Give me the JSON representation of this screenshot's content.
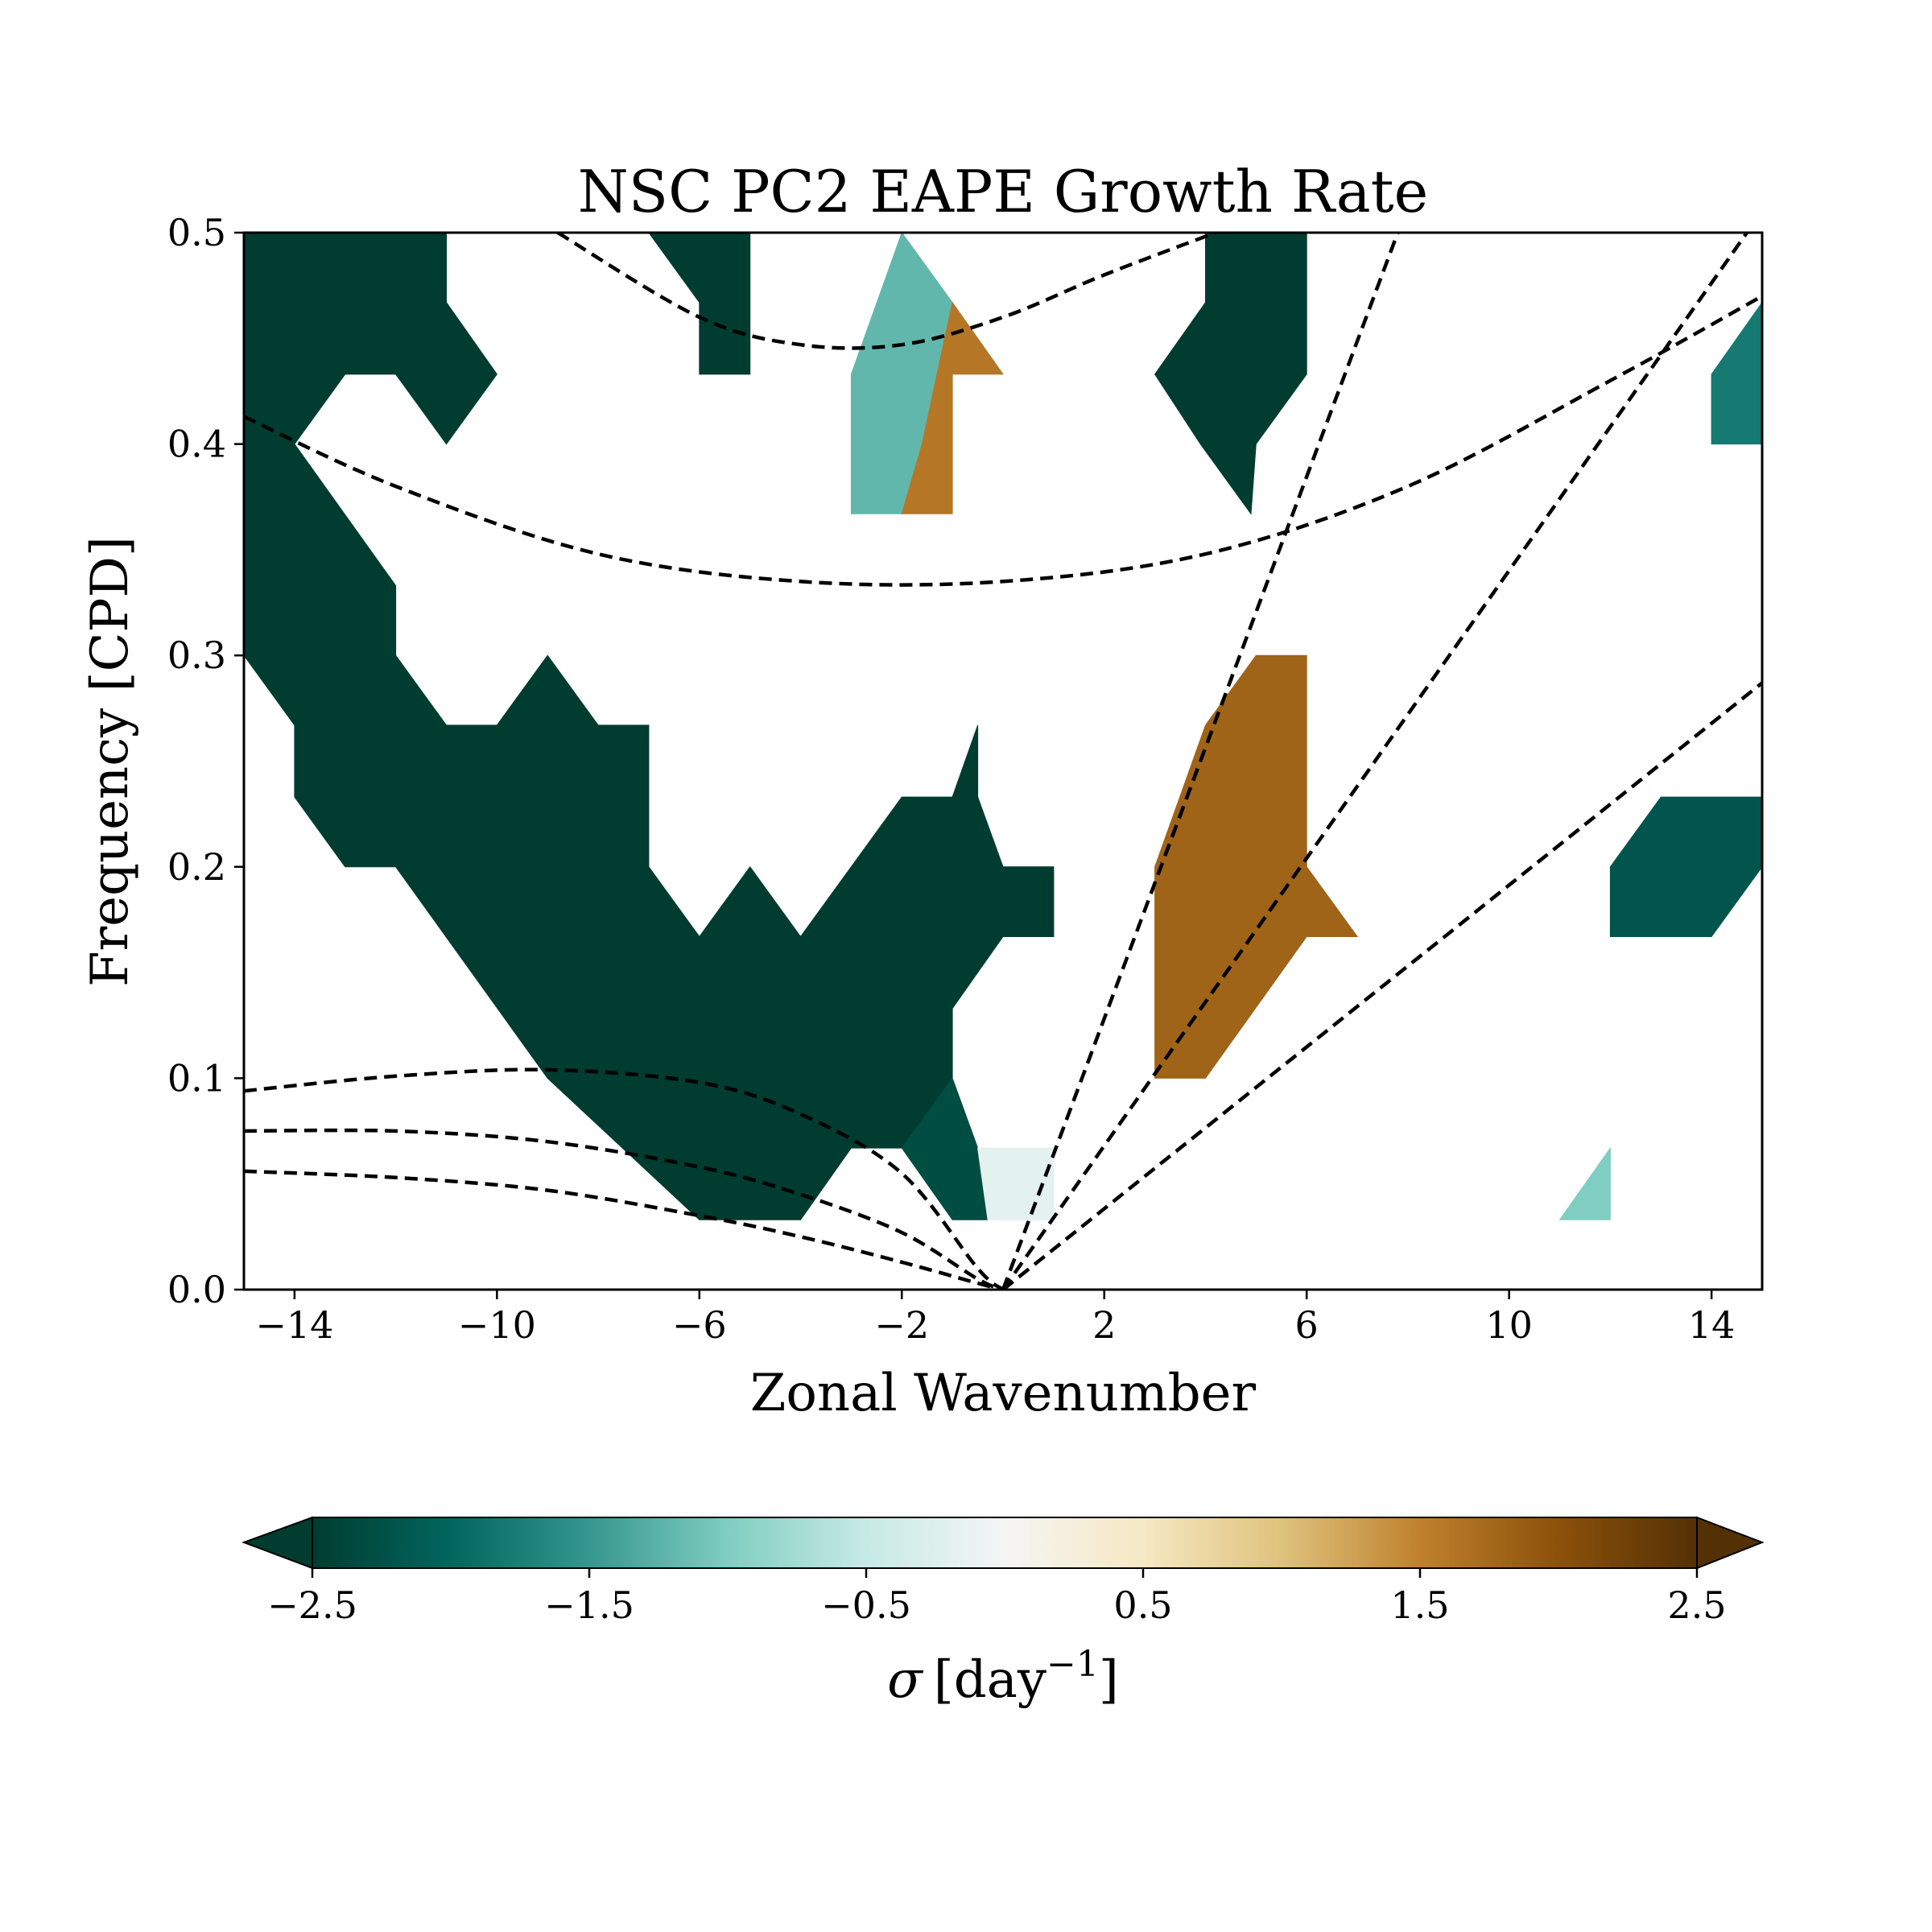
{
  "chart_data": {
    "type": "heatmap",
    "title": "NSC PC2 EAPE Growth Rate",
    "xlabel": "Zonal Wavenumber",
    "ylabel": "Frequency [CPD]",
    "xlim": [
      -15,
      15
    ],
    "ylim": [
      0,
      0.5
    ],
    "xticks": [
      -14,
      -10,
      -6,
      -2,
      2,
      6,
      10,
      14
    ],
    "xtick_labels": [
      "−14",
      "−10",
      "−6",
      "−2",
      "2",
      "6",
      "10",
      "14"
    ],
    "yticks": [
      0.0,
      0.1,
      0.2,
      0.3,
      0.4,
      0.5
    ],
    "ytick_labels": [
      "0.0",
      "0.1",
      "0.2",
      "0.3",
      "0.4",
      "0.5"
    ],
    "colorbar": {
      "label_symbol": "σ",
      "label_unit": "[day",
      "label_exp": "−1",
      "label_close": "]",
      "range": [
        -2.5,
        2.5
      ],
      "extend": "both",
      "ticks": [
        -2.5,
        -1.5,
        -0.5,
        0.5,
        1.5,
        2.5
      ],
      "tick_labels": [
        "−2.5",
        "−1.5",
        "−0.5",
        "0.5",
        "1.5",
        "2.5"
      ],
      "colormap": "BrBG_r",
      "color_stops": [
        "#003c30",
        "#01665e",
        "#35978f",
        "#80cdc1",
        "#c7eae5",
        "#f5f5f5",
        "#f6e8c3",
        "#dfc27d",
        "#bf812d",
        "#8c510a",
        "#543005"
      ]
    },
    "regions": [
      {
        "value": -2.5,
        "polygon": [
          [
            -15,
            0.5
          ],
          [
            -11,
            0.5
          ],
          [
            -11,
            0.467
          ],
          [
            -10,
            0.433
          ],
          [
            -11,
            0.4
          ],
          [
            -12,
            0.433
          ],
          [
            -13,
            0.433
          ],
          [
            -14,
            0.4
          ],
          [
            -15,
            0.4
          ]
        ]
      },
      {
        "value": -2.5,
        "polygon": [
          [
            -15,
            0.4
          ],
          [
            -14,
            0.4
          ],
          [
            -12,
            0.333
          ],
          [
            -12,
            0.3
          ],
          [
            -11,
            0.267
          ],
          [
            -10,
            0.267
          ],
          [
            -9,
            0.3
          ],
          [
            -8,
            0.267
          ],
          [
            -7,
            0.267
          ],
          [
            -7,
            0.2
          ],
          [
            -6,
            0.167
          ],
          [
            -5,
            0.2
          ],
          [
            -4,
            0.167
          ],
          [
            -2,
            0.233
          ],
          [
            -1,
            0.233
          ],
          [
            -0.5,
            0.267
          ],
          [
            -0.5,
            0.233
          ],
          [
            0,
            0.2
          ],
          [
            1,
            0.2
          ],
          [
            1,
            0.167
          ],
          [
            0,
            0.167
          ],
          [
            -1,
            0.133
          ],
          [
            -1,
            0.1
          ],
          [
            -1.8,
            0.067
          ],
          [
            -2,
            0.067
          ],
          [
            -3,
            0.067
          ],
          [
            -4,
            0.033
          ],
          [
            -6,
            0.033
          ],
          [
            -9,
            0.1
          ],
          [
            -12,
            0.2
          ],
          [
            -13,
            0.2
          ],
          [
            -14,
            0.233
          ],
          [
            -14,
            0.267
          ],
          [
            -15,
            0.3
          ]
        ]
      },
      {
        "value": -2.5,
        "polygon": [
          [
            -7,
            0.5
          ],
          [
            -5,
            0.5
          ],
          [
            -5,
            0.433
          ],
          [
            -6,
            0.433
          ],
          [
            -6,
            0.467
          ]
        ]
      },
      {
        "value": -2.5,
        "polygon": [
          [
            4,
            0.5
          ],
          [
            6,
            0.5
          ],
          [
            6,
            0.433
          ],
          [
            5,
            0.4
          ],
          [
            4.9,
            0.367
          ],
          [
            3.9,
            0.4
          ],
          [
            3,
            0.433
          ],
          [
            4,
            0.467
          ]
        ]
      },
      {
        "value": -2.3,
        "polygon": [
          [
            -1,
            0.1
          ],
          [
            -0.5,
            0.067
          ],
          [
            -0.3,
            0.033
          ],
          [
            -1,
            0.033
          ],
          [
            -2,
            0.067
          ]
        ]
      },
      {
        "value": -2.2,
        "polygon": [
          [
            13,
            0.233
          ],
          [
            15,
            0.233
          ],
          [
            15,
            0.2
          ],
          [
            14,
            0.167
          ],
          [
            12,
            0.167
          ],
          [
            12,
            0.2
          ]
        ]
      },
      {
        "value": -1.8,
        "polygon": [
          [
            15,
            0.467
          ],
          [
            15,
            0.4
          ],
          [
            14,
            0.4
          ],
          [
            14,
            0.433
          ]
        ]
      },
      {
        "value": -1.0,
        "polygon": [
          [
            11,
            0.033
          ],
          [
            12,
            0.033
          ],
          [
            12,
            0.067
          ]
        ]
      },
      {
        "value": -0.2,
        "polygon": [
          [
            -0.5,
            0.067
          ],
          [
            1,
            0.067
          ],
          [
            1,
            0.033
          ],
          [
            -0.3,
            0.033
          ]
        ]
      },
      {
        "value": -1.2,
        "polygon": [
          [
            -2,
            0.5
          ],
          [
            -1,
            0.467
          ],
          [
            -0.8,
            0.45
          ],
          [
            -1.5,
            0.4
          ],
          [
            -2,
            0.367
          ],
          [
            -3,
            0.367
          ],
          [
            -3,
            0.433
          ]
        ]
      },
      {
        "value": 1.6,
        "polygon": [
          [
            -1,
            0.467
          ],
          [
            0,
            0.433
          ],
          [
            -1,
            0.433
          ],
          [
            -1,
            0.367
          ],
          [
            -2,
            0.367
          ],
          [
            -1.6,
            0.4
          ]
        ]
      },
      {
        "value": 1.8,
        "polygon": [
          [
            4,
            0.267
          ],
          [
            5,
            0.3
          ],
          [
            6,
            0.3
          ],
          [
            6,
            0.2
          ],
          [
            7,
            0.167
          ],
          [
            6,
            0.167
          ],
          [
            4,
            0.1
          ],
          [
            3,
            0.1
          ],
          [
            3,
            0.2
          ]
        ]
      }
    ],
    "dispersion_curves": [
      {
        "points": [
          [
            -8.8,
            0.5
          ],
          [
            -6,
            0.46
          ],
          [
            -4,
            0.447
          ],
          [
            -2,
            0.447
          ],
          [
            0,
            0.46
          ],
          [
            2,
            0.48
          ],
          [
            4.2,
            0.5
          ]
        ]
      },
      {
        "points": [
          [
            -15,
            0.413
          ],
          [
            -12,
            0.38
          ],
          [
            -8,
            0.348
          ],
          [
            -4,
            0.335
          ],
          [
            0,
            0.335
          ],
          [
            4,
            0.348
          ],
          [
            8,
            0.38
          ],
          [
            12,
            0.43
          ],
          [
            15,
            0.47
          ]
        ]
      },
      {
        "points": [
          [
            -15,
            0.094
          ],
          [
            -12,
            0.101
          ],
          [
            -9,
            0.104
          ],
          [
            -6,
            0.098
          ],
          [
            -4,
            0.083
          ],
          [
            -2,
            0.055
          ],
          [
            -0.5,
            0.01
          ],
          [
            0,
            0
          ]
        ]
      },
      {
        "points": [
          [
            -15,
            0.075
          ],
          [
            -12,
            0.075
          ],
          [
            -9,
            0.07
          ],
          [
            -6,
            0.058
          ],
          [
            -4,
            0.045
          ],
          [
            -2,
            0.027
          ],
          [
            -0.5,
            0.005
          ],
          [
            0,
            0
          ]
        ]
      },
      {
        "points": [
          [
            -15,
            0.056
          ],
          [
            -12,
            0.053
          ],
          [
            -9,
            0.047
          ],
          [
            -6,
            0.035
          ],
          [
            -4,
            0.025
          ],
          [
            -2,
            0.013
          ],
          [
            -0.5,
            0.003
          ],
          [
            0,
            0
          ]
        ]
      },
      {
        "points": [
          [
            0,
            0
          ],
          [
            7.8,
            0.5
          ]
        ]
      },
      {
        "points": [
          [
            0,
            0
          ],
          [
            14.7,
            0.5
          ]
        ]
      },
      {
        "points": [
          [
            0,
            0
          ],
          [
            15,
            0.287
          ]
        ]
      }
    ]
  }
}
